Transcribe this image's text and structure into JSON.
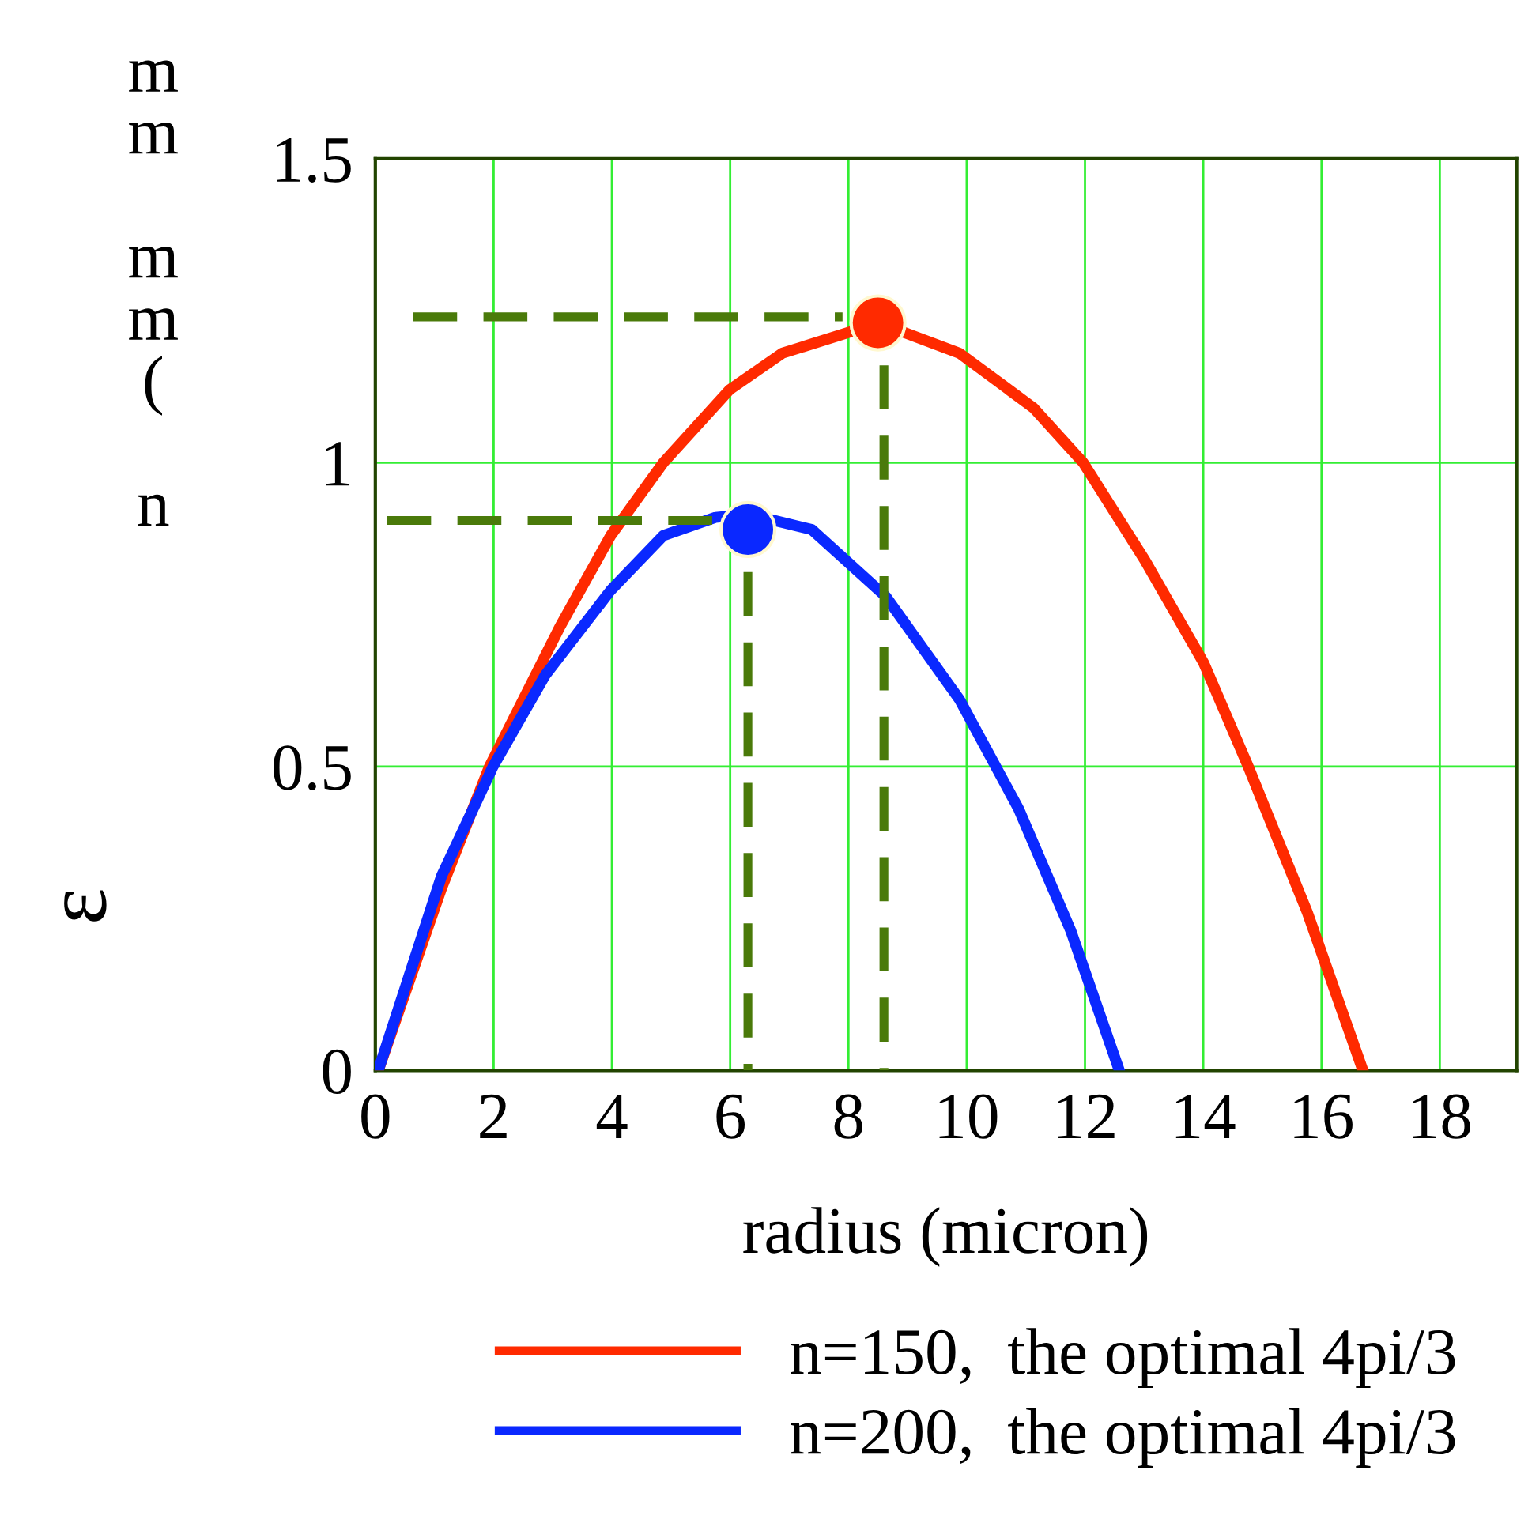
{
  "chart_data": {
    "type": "line",
    "xlabel": "radius (micron)",
    "ylabel": "ε",
    "annotations": [
      "m\nm\n\nm\nm\n(\n\nn"
    ],
    "xlim": [
      0,
      19.3
    ],
    "ylim": [
      0,
      1.5
    ],
    "xticks": [
      0,
      2,
      4,
      6,
      8,
      10,
      12,
      14,
      16,
      18
    ],
    "yticks": [
      0,
      0.5,
      1,
      1.5
    ],
    "grid": true,
    "legend": "bottom",
    "line_style": "solid",
    "series": [
      {
        "name": "n=150,  the optimal 4pi/3",
        "color": "#ff2a00",
        "x": [
          0.05,
          1.12,
          1.93,
          3.12,
          3.98,
          4.87,
          5.99,
          6.88,
          8.51,
          9.88,
          11.13,
          11.97,
          13.01,
          14.01,
          14.76,
          15.76,
          16.7
        ],
        "values": [
          0,
          0.3,
          0.5,
          0.73,
          0.88,
          1.0,
          1.12,
          1.18,
          1.23,
          1.18,
          1.09,
          1.0,
          0.84,
          0.67,
          0.5,
          0.26,
          0
        ]
      },
      {
        "name": "n=200,  the optimal 4pi/3",
        "color": "#0a28ff",
        "x": [
          0.05,
          1.12,
          1.99,
          2.87,
          3.98,
          4.87,
          5.75,
          6.32,
          7.38,
          8.63,
          9.88,
          10.88,
          11.76,
          12.58
        ],
        "values": [
          0,
          0.32,
          0.5,
          0.65,
          0.79,
          0.88,
          0.91,
          0.915,
          0.89,
          0.78,
          0.61,
          0.43,
          0.23,
          0
        ]
      },
      {
        "type": "line",
        "color": "#4a7a0a",
        "line_style": "dashed",
        "x": [
          0.64,
          7.9
        ],
        "values": [
          1.24,
          1.24
        ]
      },
      {
        "type": "line",
        "color": "#4a7a0a",
        "line_style": "dashed",
        "x": [
          8.6,
          8.6
        ],
        "values": [
          1.16,
          0
        ]
      },
      {
        "type": "line",
        "color": "#4a7a0a",
        "line_style": "dashed",
        "x": [
          0.2,
          5.7
        ],
        "values": [
          0.905,
          0.905
        ]
      },
      {
        "type": "line",
        "color": "#4a7a0a",
        "line_style": "dashed",
        "x": [
          6.3,
          6.3
        ],
        "values": [
          0.82,
          0
        ]
      },
      {
        "type": "scatter",
        "color": "#ff2a00",
        "marker": "circle",
        "x": [
          8.5
        ],
        "values": [
          1.23
        ]
      },
      {
        "type": "scatter",
        "color": "#0a28ff",
        "marker": "circle",
        "x": [
          6.3
        ],
        "values": [
          0.89
        ]
      }
    ]
  }
}
